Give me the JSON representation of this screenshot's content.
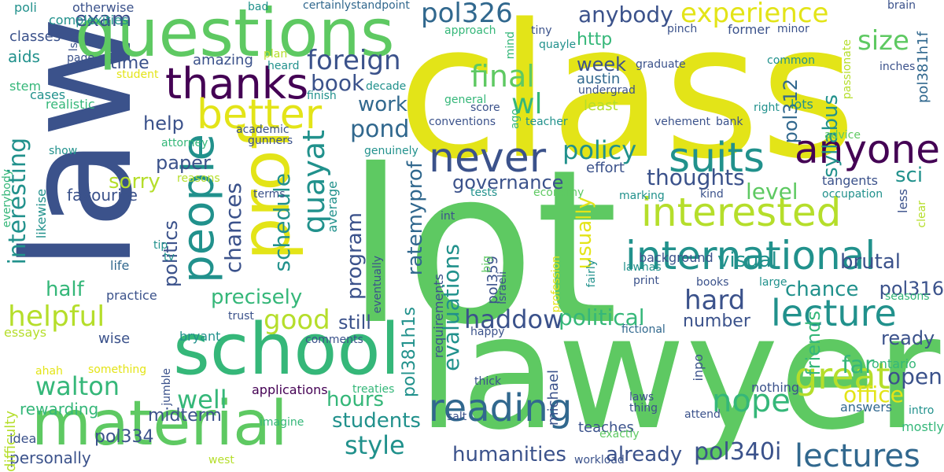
{
  "palette": {
    "deep_purple": "#440154",
    "indigo": "#3b528b",
    "blue": "#31688e",
    "teal": "#21918c",
    "green": "#35b779",
    "light_green": "#5ec962",
    "lime": "#b5de2b",
    "yellow": "#e3e418"
  },
  "words": [
    "class",
    "lot",
    "law",
    "lawyer",
    "questions",
    "school",
    "material",
    "prof",
    "people",
    "thanks",
    "better",
    "suits",
    "anyone",
    "never",
    "interested",
    "international",
    "lecture",
    "great",
    "reading",
    "quayat",
    "foreign",
    "pol326",
    "experience",
    "size",
    "final",
    "wl",
    "nope",
    "lectures",
    "helpful",
    "walton",
    "haddow",
    "political",
    "good",
    "hard",
    "precisely",
    "program",
    "governance",
    "policy",
    "ratemyprof",
    "interesting",
    "students",
    "style",
    "humanities",
    "already",
    "pol340i",
    "hours",
    "friends",
    "far",
    "open",
    "office",
    "level",
    "sci",
    "thoughts",
    "visual",
    "brutal",
    "chance",
    "pol316",
    "number",
    "ready",
    "syllabus",
    "pol312",
    "week",
    "austin",
    "http",
    "book",
    "pond",
    "work",
    "help",
    "paper",
    "sorry",
    "schedule",
    "chances",
    "politics",
    "half",
    "well",
    "still",
    "evaluations",
    "usually",
    "anybody",
    "exam",
    "aids",
    "time",
    "amazing",
    "favourite",
    "midterm",
    "pol334",
    "personally",
    "rewarding",
    "difficulty",
    "essays",
    "wise",
    "bryant",
    "ahah",
    "comments",
    "applications",
    "teaches",
    "pol381h1s",
    "pol359",
    "israeli",
    "requirements",
    "happy",
    "michael",
    "inpo",
    "answers",
    "intro",
    "mostly",
    "ontario",
    "nothing",
    "laws",
    "thing",
    "exactly",
    "workload",
    "west",
    "imagine",
    "jumble",
    "idea",
    "treaties",
    "salt",
    "thick",
    "something",
    "trust",
    "practice",
    "life",
    "tv",
    "tip",
    "likewise",
    "everybody",
    "stem",
    "cases",
    "realistic",
    "show",
    "student",
    "classes",
    "poli",
    "complexities",
    "otherwise",
    "bad",
    "certainlystandpoint",
    "approach",
    "tiny",
    "mind",
    "quayle",
    "plan",
    "heard",
    "page",
    "lsat",
    "decade",
    "finish",
    "score",
    "general",
    "undergrad",
    "least",
    "graduate",
    "common",
    "right",
    "lots",
    "inches",
    "brain",
    "minor",
    "former",
    "pinch",
    "passionate",
    "pol381h1f",
    "bank",
    "advice",
    "vehement",
    "conventions",
    "teacher",
    "genuinely",
    "tests",
    "economy",
    "effort",
    "marking",
    "kind",
    "tangents",
    "occupation",
    "less",
    "clear",
    "background",
    "lawhas",
    "fairly",
    "profession",
    "big",
    "int",
    "eventually",
    "print",
    "books",
    "large",
    "seasons",
    "fictional",
    "attend",
    "gunners",
    "academic",
    "attorney",
    "average",
    "terms",
    "reasons",
    "ago"
  ]
}
